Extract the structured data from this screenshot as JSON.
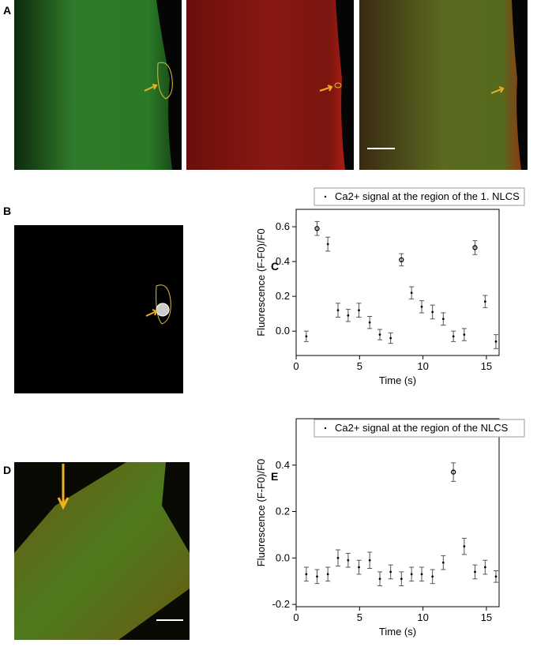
{
  "panel_labels": [
    "A",
    "B",
    "D"
  ],
  "chart_data": [
    {
      "type": "errorbar-scatter",
      "label": "C",
      "x_label": "Time (s)",
      "y_label": "Fluorescence (F-F0)/F0",
      "series": [
        {
          "name": "Ca2+ signal at the region of the 1. NLCS",
          "color": "#000000",
          "x": [
            0.8,
            1.65,
            2.5,
            3.3,
            4.1,
            4.95,
            5.8,
            6.6,
            7.45,
            8.3,
            9.1,
            9.9,
            10.75,
            11.6,
            12.4,
            13.25,
            14.1,
            14.9,
            15.75
          ],
          "values": [
            -0.03,
            0.59,
            0.5,
            0.12,
            0.09,
            0.12,
            0.05,
            -0.02,
            -0.04,
            0.41,
            0.22,
            0.14,
            0.11,
            0.07,
            -0.03,
            -0.02,
            0.48,
            0.17,
            -0.06
          ],
          "errors": [
            0.03,
            0.04,
            0.04,
            0.04,
            0.035,
            0.04,
            0.035,
            0.03,
            0.03,
            0.035,
            0.035,
            0.035,
            0.04,
            0.035,
            0.03,
            0.035,
            0.04,
            0.035,
            0.04
          ],
          "open_markers": [
            1,
            9,
            16
          ]
        }
      ],
      "xlim": [
        0,
        16
      ],
      "xticks": [
        0,
        5,
        10,
        15
      ],
      "ylim": [
        -0.14,
        0.7
      ],
      "yticks": [
        {
          "value": 0,
          "label": "0.0"
        },
        0.2,
        0.4,
        0.6
      ]
    },
    {
      "type": "errorbar-scatter",
      "label": "E",
      "x_label": "Time (s)",
      "y_label": "Fluorescence (F-F0)/F0",
      "series": [
        {
          "name": "Ca2+ signal at the region of the NLCS",
          "color": "#000000",
          "x": [
            0.8,
            1.65,
            2.5,
            3.3,
            4.1,
            4.95,
            5.8,
            6.6,
            7.45,
            8.3,
            9.1,
            9.9,
            10.75,
            11.6,
            12.4,
            13.25,
            14.1,
            14.9,
            15.75
          ],
          "values": [
            -0.07,
            -0.08,
            -0.07,
            0.0,
            -0.01,
            -0.04,
            -0.01,
            -0.09,
            -0.06,
            -0.09,
            -0.07,
            -0.07,
            -0.08,
            -0.02,
            0.37,
            0.05,
            -0.06,
            -0.04,
            -0.08
          ],
          "errors": [
            0.03,
            0.03,
            0.03,
            0.035,
            0.03,
            0.03,
            0.035,
            0.03,
            0.03,
            0.03,
            0.03,
            0.03,
            0.03,
            0.03,
            0.04,
            0.035,
            0.03,
            0.03,
            0.025
          ],
          "open_markers": [
            14
          ]
        }
      ],
      "xlim": [
        0,
        16
      ],
      "xticks": [
        0,
        5,
        10,
        15
      ],
      "ylim": [
        -0.21,
        0.6
      ],
      "yticks": [
        -0.2,
        {
          "value": 0,
          "label": "0.0"
        },
        0.2,
        0.4
      ]
    }
  ]
}
